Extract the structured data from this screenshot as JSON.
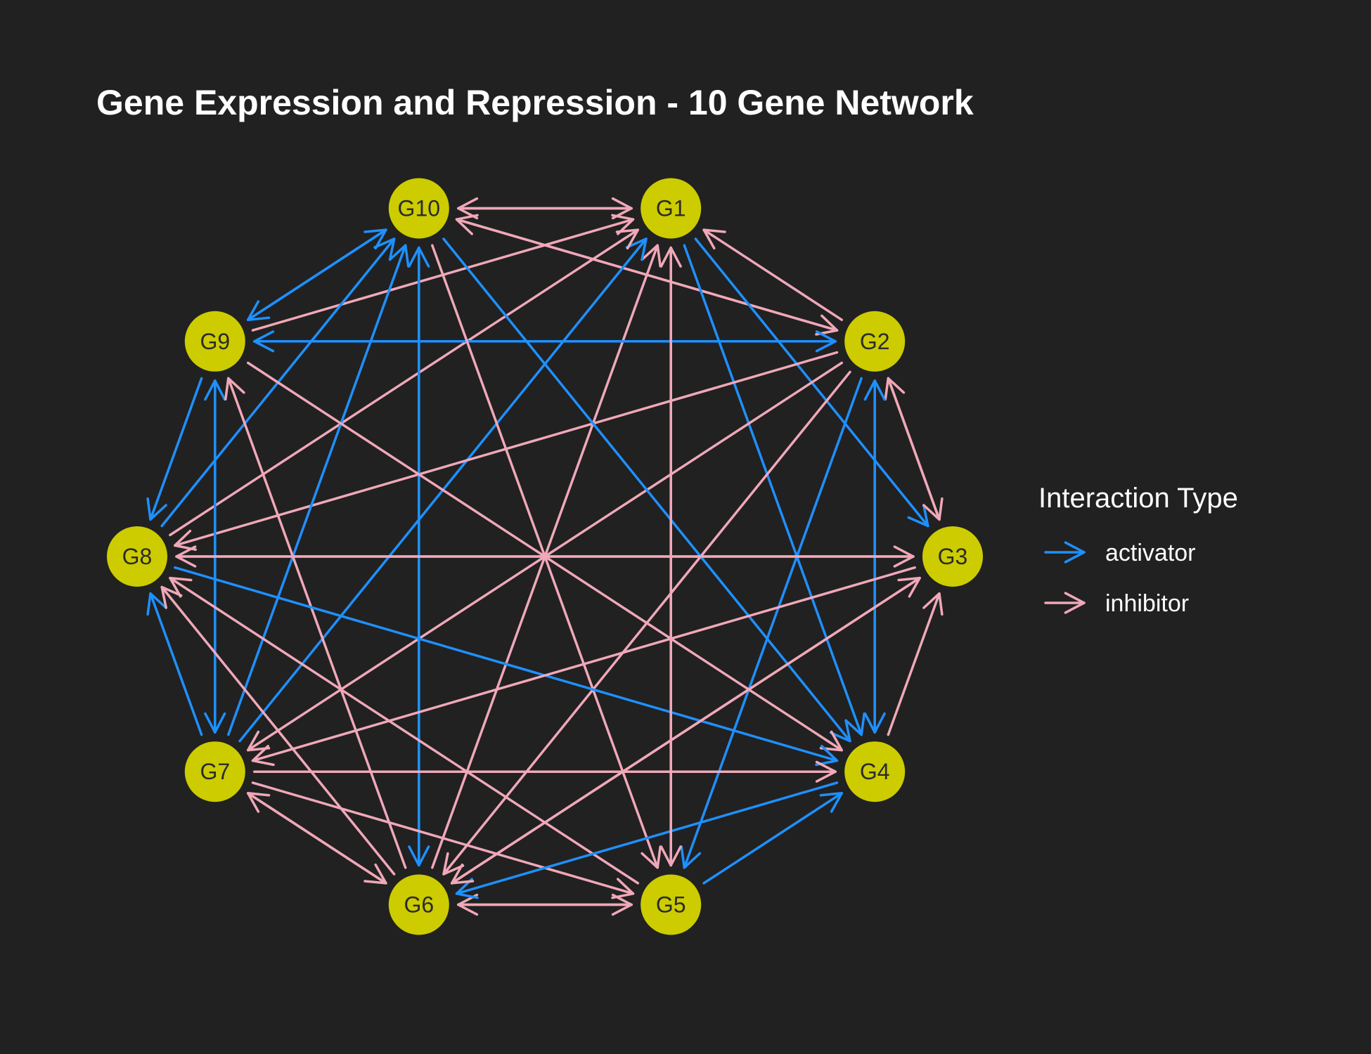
{
  "title": "Gene Expression and Repression - 10 Gene Network",
  "colors": {
    "background": "#212121",
    "node": "#cccc00",
    "activator": "#1e90ff",
    "inhibitor": "#f0a8b8"
  },
  "legend": {
    "title": "Interaction Type",
    "items": [
      {
        "type": "activator",
        "label": "activator"
      },
      {
        "type": "inhibitor",
        "label": "inhibitor"
      }
    ]
  },
  "nodes": [
    {
      "id": "G1",
      "label": "G1"
    },
    {
      "id": "G2",
      "label": "G2"
    },
    {
      "id": "G3",
      "label": "G3"
    },
    {
      "id": "G4",
      "label": "G4"
    },
    {
      "id": "G5",
      "label": "G5"
    },
    {
      "id": "G6",
      "label": "G6"
    },
    {
      "id": "G7",
      "label": "G7"
    },
    {
      "id": "G8",
      "label": "G8"
    },
    {
      "id": "G9",
      "label": "G9"
    },
    {
      "id": "G10",
      "label": "G10"
    }
  ],
  "edges": [
    {
      "from": "G10",
      "to": "G1",
      "type": "inhibitor"
    },
    {
      "from": "G1",
      "to": "G10",
      "type": "inhibitor"
    },
    {
      "from": "G10",
      "to": "G2",
      "type": "inhibitor"
    },
    {
      "from": "G2",
      "to": "G10",
      "type": "inhibitor"
    },
    {
      "from": "G2",
      "to": "G1",
      "type": "inhibitor"
    },
    {
      "from": "G1",
      "to": "G3",
      "type": "activator"
    },
    {
      "from": "G1",
      "to": "G4",
      "type": "activator"
    },
    {
      "from": "G5",
      "to": "G1",
      "type": "inhibitor"
    },
    {
      "from": "G6",
      "to": "G1",
      "type": "inhibitor"
    },
    {
      "from": "G7",
      "to": "G1",
      "type": "activator"
    },
    {
      "from": "G8",
      "to": "G1",
      "type": "inhibitor"
    },
    {
      "from": "G9",
      "to": "G1",
      "type": "inhibitor"
    },
    {
      "from": "G2",
      "to": "G9",
      "type": "activator"
    },
    {
      "from": "G9",
      "to": "G2",
      "type": "activator"
    },
    {
      "from": "G2",
      "to": "G3",
      "type": "inhibitor"
    },
    {
      "from": "G3",
      "to": "G2",
      "type": "inhibitor"
    },
    {
      "from": "G2",
      "to": "G4",
      "type": "activator"
    },
    {
      "from": "G4",
      "to": "G2",
      "type": "activator"
    },
    {
      "from": "G2",
      "to": "G5",
      "type": "activator"
    },
    {
      "from": "G2",
      "to": "G6",
      "type": "inhibitor"
    },
    {
      "from": "G2",
      "to": "G7",
      "type": "inhibitor"
    },
    {
      "from": "G2",
      "to": "G8",
      "type": "inhibitor"
    },
    {
      "from": "G10",
      "to": "G9",
      "type": "activator"
    },
    {
      "from": "G9",
      "to": "G10",
      "type": "activator"
    },
    {
      "from": "G10",
      "to": "G6",
      "type": "activator"
    },
    {
      "from": "G6",
      "to": "G10",
      "type": "activator"
    },
    {
      "from": "G10",
      "to": "G4",
      "type": "activator"
    },
    {
      "from": "G10",
      "to": "G5",
      "type": "inhibitor"
    },
    {
      "from": "G7",
      "to": "G10",
      "type": "activator"
    },
    {
      "from": "G8",
      "to": "G10",
      "type": "activator"
    },
    {
      "from": "G9",
      "to": "G8",
      "type": "activator"
    },
    {
      "from": "G9",
      "to": "G7",
      "type": "activator"
    },
    {
      "from": "G7",
      "to": "G9",
      "type": "activator"
    },
    {
      "from": "G9",
      "to": "G4",
      "type": "inhibitor"
    },
    {
      "from": "G6",
      "to": "G9",
      "type": "inhibitor"
    },
    {
      "from": "G8",
      "to": "G3",
      "type": "inhibitor"
    },
    {
      "from": "G3",
      "to": "G8",
      "type": "inhibitor"
    },
    {
      "from": "G8",
      "to": "G4",
      "type": "activator"
    },
    {
      "from": "G7",
      "to": "G8",
      "type": "activator"
    },
    {
      "from": "G6",
      "to": "G8",
      "type": "inhibitor"
    },
    {
      "from": "G5",
      "to": "G8",
      "type": "inhibitor"
    },
    {
      "from": "G7",
      "to": "G4",
      "type": "inhibitor"
    },
    {
      "from": "G7",
      "to": "G6",
      "type": "inhibitor"
    },
    {
      "from": "G6",
      "to": "G7",
      "type": "inhibitor"
    },
    {
      "from": "G7",
      "to": "G5",
      "type": "inhibitor"
    },
    {
      "from": "G3",
      "to": "G7",
      "type": "inhibitor"
    },
    {
      "from": "G6",
      "to": "G5",
      "type": "inhibitor"
    },
    {
      "from": "G5",
      "to": "G6",
      "type": "inhibitor"
    },
    {
      "from": "G5",
      "to": "G4",
      "type": "activator"
    },
    {
      "from": "G4",
      "to": "G6",
      "type": "activator"
    },
    {
      "from": "G4",
      "to": "G3",
      "type": "inhibitor"
    },
    {
      "from": "G6",
      "to": "G3",
      "type": "inhibitor"
    },
    {
      "from": "G1",
      "to": "G5",
      "type": "inhibitor"
    },
    {
      "from": "G3",
      "to": "G6",
      "type": "inhibitor"
    }
  ]
}
